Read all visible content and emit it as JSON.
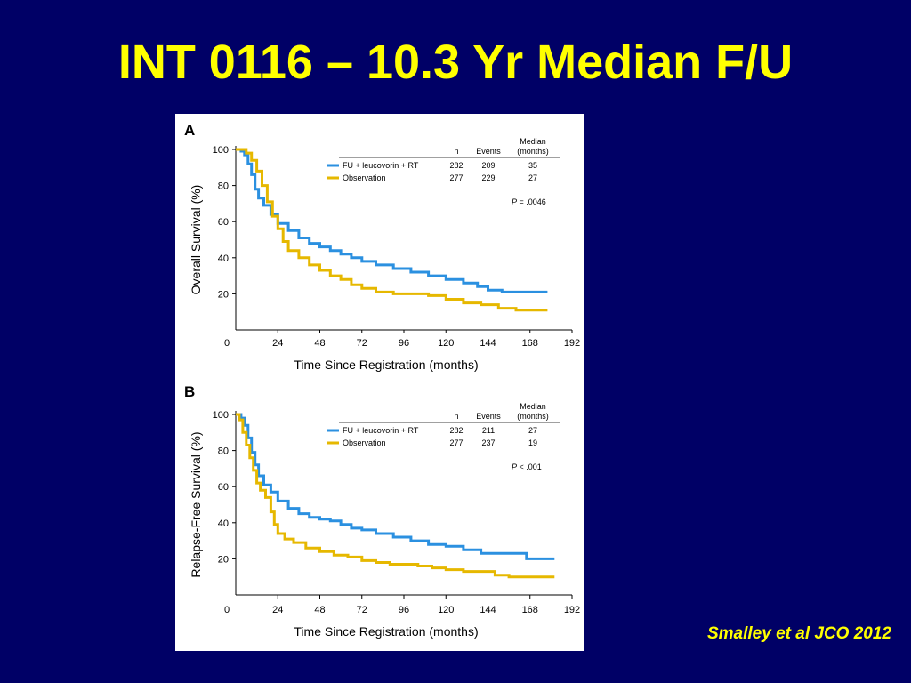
{
  "slide": {
    "title": "INT 0116 – 10.3 Yr Median F/U",
    "citation": "Smalley et al JCO 2012"
  },
  "colors": {
    "background": "#000066",
    "title_text": "#ffff00",
    "fu_series": "#2b90e0",
    "obs_series": "#e6b800"
  },
  "chart_data": [
    {
      "type": "line",
      "panel_label": "A",
      "xlabel": "Time Since Registration (months)",
      "ylabel": "Overall Survival (%)",
      "xlim": [
        0,
        192
      ],
      "ylim": [
        0,
        100
      ],
      "xticks": [
        0,
        24,
        48,
        72,
        96,
        120,
        144,
        168,
        192
      ],
      "yticks": [
        20,
        40,
        60,
        80,
        100
      ],
      "legend_header": {
        "n": "n",
        "events": "Events",
        "median_line1": "Median",
        "median_line2": "(months)"
      },
      "p_value": {
        "label": "P",
        "text": " = .0046"
      },
      "series": [
        {
          "name": "FU + leucovorin + RT",
          "n": "282",
          "events": "209",
          "median": "35",
          "color_key": "fu_series",
          "points": [
            [
              0,
              100
            ],
            [
              3,
              99
            ],
            [
              5,
              97
            ],
            [
              7,
              92
            ],
            [
              9,
              86
            ],
            [
              11,
              78
            ],
            [
              13,
              73
            ],
            [
              16,
              69
            ],
            [
              20,
              64
            ],
            [
              24,
              59
            ],
            [
              30,
              55
            ],
            [
              36,
              51
            ],
            [
              42,
              48
            ],
            [
              48,
              46
            ],
            [
              54,
              44
            ],
            [
              60,
              42
            ],
            [
              66,
              40
            ],
            [
              72,
              38
            ],
            [
              80,
              36
            ],
            [
              90,
              34
            ],
            [
              100,
              32
            ],
            [
              110,
              30
            ],
            [
              120,
              28
            ],
            [
              130,
              26
            ],
            [
              138,
              24
            ],
            [
              144,
              22
            ],
            [
              152,
              21
            ],
            [
              160,
              21
            ],
            [
              170,
              21
            ],
            [
              178,
              21
            ]
          ]
        },
        {
          "name": "Observation",
          "n": "277",
          "events": "229",
          "median": "27",
          "color_key": "obs_series",
          "points": [
            [
              0,
              100
            ],
            [
              3,
              100
            ],
            [
              6,
              98
            ],
            [
              9,
              94
            ],
            [
              12,
              88
            ],
            [
              15,
              80
            ],
            [
              18,
              71
            ],
            [
              21,
              63
            ],
            [
              24,
              56
            ],
            [
              27,
              49
            ],
            [
              30,
              44
            ],
            [
              36,
              40
            ],
            [
              42,
              36
            ],
            [
              48,
              33
            ],
            [
              54,
              30
            ],
            [
              60,
              28
            ],
            [
              66,
              25
            ],
            [
              72,
              23
            ],
            [
              80,
              21
            ],
            [
              90,
              20
            ],
            [
              100,
              20
            ],
            [
              110,
              19
            ],
            [
              120,
              17
            ],
            [
              130,
              15
            ],
            [
              140,
              14
            ],
            [
              150,
              12
            ],
            [
              160,
              11
            ],
            [
              170,
              11
            ],
            [
              178,
              11
            ]
          ]
        }
      ]
    },
    {
      "type": "line",
      "panel_label": "B",
      "xlabel": "Time Since Registration (months)",
      "ylabel": "Relapse-Free Survival (%)",
      "xlim": [
        0,
        192
      ],
      "ylim": [
        0,
        100
      ],
      "xticks": [
        0,
        24,
        48,
        72,
        96,
        120,
        144,
        168,
        192
      ],
      "yticks": [
        20,
        40,
        60,
        80,
        100
      ],
      "legend_header": {
        "n": "n",
        "events": "Events",
        "median_line1": "Median",
        "median_line2": "(months)"
      },
      "p_value": {
        "label": "P",
        "text": " < .001"
      },
      "series": [
        {
          "name": "FU + leucovorin + RT",
          "n": "282",
          "events": "211",
          "median": "27",
          "color_key": "fu_series",
          "points": [
            [
              0,
              100
            ],
            [
              3,
              98
            ],
            [
              5,
              94
            ],
            [
              7,
              87
            ],
            [
              9,
              79
            ],
            [
              11,
              72
            ],
            [
              13,
              66
            ],
            [
              16,
              61
            ],
            [
              20,
              57
            ],
            [
              24,
              52
            ],
            [
              30,
              48
            ],
            [
              36,
              45
            ],
            [
              42,
              43
            ],
            [
              48,
              42
            ],
            [
              54,
              41
            ],
            [
              60,
              39
            ],
            [
              66,
              37
            ],
            [
              72,
              36
            ],
            [
              80,
              34
            ],
            [
              90,
              32
            ],
            [
              100,
              30
            ],
            [
              110,
              28
            ],
            [
              120,
              27
            ],
            [
              130,
              25
            ],
            [
              140,
              23
            ],
            [
              150,
              23
            ],
            [
              160,
              23
            ],
            [
              166,
              20
            ],
            [
              172,
              20
            ],
            [
              182,
              20
            ]
          ]
        },
        {
          "name": "Observation",
          "n": "277",
          "events": "237",
          "median": "19",
          "color_key": "obs_series",
          "points": [
            [
              0,
              100
            ],
            [
              2,
              97
            ],
            [
              4,
              90
            ],
            [
              6,
              83
            ],
            [
              8,
              76
            ],
            [
              10,
              69
            ],
            [
              12,
              62
            ],
            [
              14,
              58
            ],
            [
              17,
              54
            ],
            [
              20,
              46
            ],
            [
              22,
              39
            ],
            [
              24,
              34
            ],
            [
              28,
              31
            ],
            [
              33,
              29
            ],
            [
              40,
              26
            ],
            [
              48,
              24
            ],
            [
              56,
              22
            ],
            [
              64,
              21
            ],
            [
              72,
              19
            ],
            [
              80,
              18
            ],
            [
              88,
              17
            ],
            [
              96,
              17
            ],
            [
              104,
              16
            ],
            [
              112,
              15
            ],
            [
              120,
              14
            ],
            [
              130,
              13
            ],
            [
              140,
              13
            ],
            [
              148,
              11
            ],
            [
              156,
              10
            ],
            [
              166,
              10
            ],
            [
              182,
              10
            ]
          ]
        }
      ]
    }
  ]
}
